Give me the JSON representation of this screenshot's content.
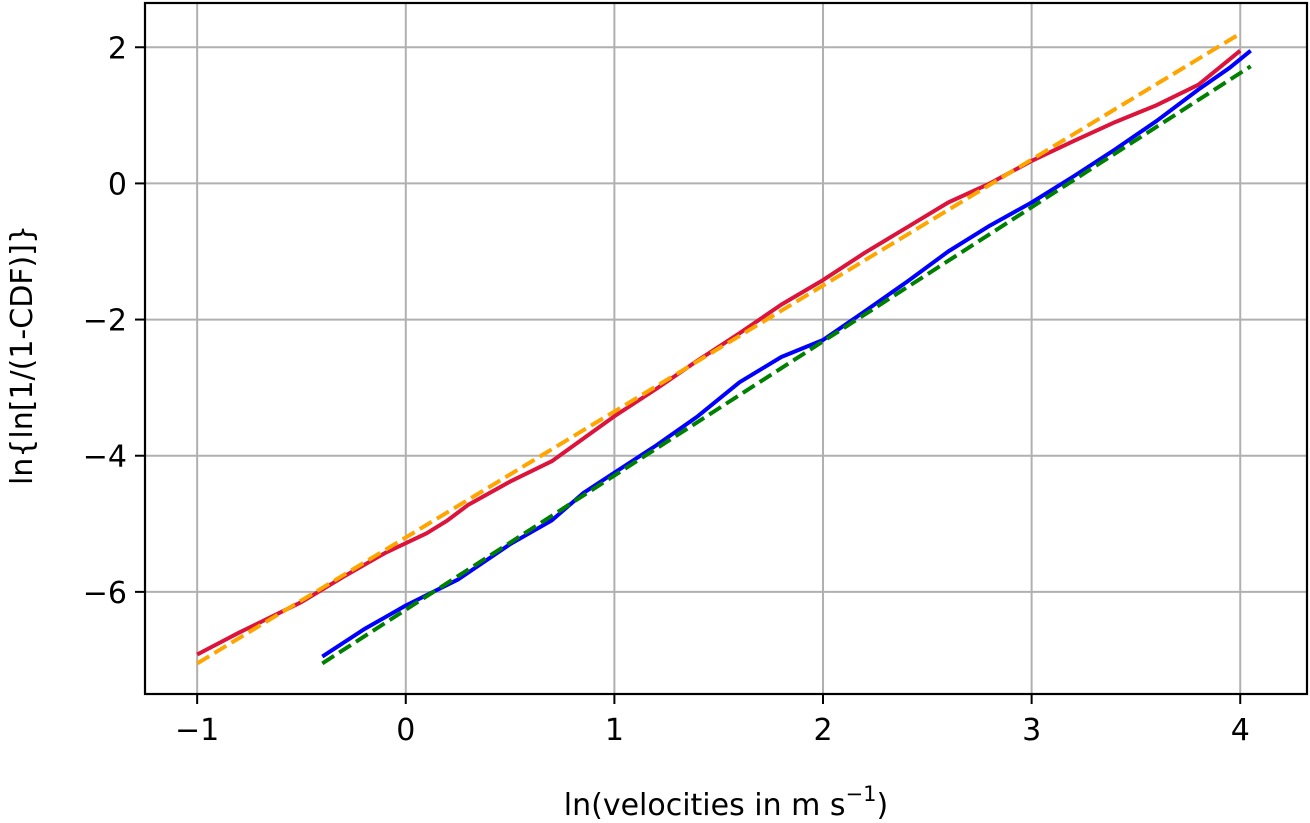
{
  "chart_data": {
    "type": "line",
    "title": "",
    "xlabel": "ln(velocities in m s",
    "xlabel_sup": "−1",
    "xlabel_close": ")",
    "ylabel": "ln{ln[1/(1-CDF)]}",
    "xlim": [
      -1.25,
      4.32
    ],
    "ylim": [
      -7.5,
      2.65
    ],
    "grid": true,
    "xticks": [
      -1,
      0,
      1,
      2,
      3,
      4
    ],
    "xtick_labels": [
      "−1",
      "0",
      "1",
      "2",
      "3",
      "4"
    ],
    "yticks": [
      2,
      0,
      -2,
      -4,
      -6
    ],
    "ytick_labels": [
      "2",
      "0",
      "−2",
      "−4",
      "−6"
    ],
    "series": [
      {
        "color": "#dc143c",
        "dash": "solid",
        "x": [
          -1.0,
          -0.8,
          -0.5,
          -0.3,
          -0.1,
          0.1,
          0.2,
          0.3,
          0.5,
          0.7,
          0.85,
          1.0,
          1.2,
          1.4,
          1.6,
          1.8,
          2.0,
          2.2,
          2.4,
          2.6,
          2.8,
          3.0,
          3.2,
          3.4,
          3.6,
          3.8,
          4.0
        ],
        "y": [
          -6.92,
          -6.6,
          -6.15,
          -5.78,
          -5.43,
          -5.14,
          -4.95,
          -4.72,
          -4.38,
          -4.08,
          -3.75,
          -3.42,
          -3.02,
          -2.6,
          -2.2,
          -1.78,
          -1.42,
          -1.02,
          -0.65,
          -0.28,
          0.0,
          0.33,
          0.62,
          0.9,
          1.15,
          1.45,
          1.95
        ]
      },
      {
        "color": "#ffa500",
        "dash": "dashed",
        "x": [
          -1.0,
          4.0
        ],
        "y": [
          -7.05,
          2.2
        ]
      },
      {
        "color": "#0000ff",
        "dash": "solid",
        "x": [
          -0.4,
          -0.2,
          0.0,
          0.25,
          0.5,
          0.7,
          0.85,
          1.0,
          1.2,
          1.4,
          1.6,
          1.8,
          2.0,
          2.2,
          2.4,
          2.6,
          2.8,
          3.0,
          3.2,
          3.4,
          3.6,
          3.8,
          3.95,
          4.05
        ],
        "y": [
          -6.95,
          -6.55,
          -6.2,
          -5.82,
          -5.3,
          -4.95,
          -4.55,
          -4.25,
          -3.85,
          -3.42,
          -2.92,
          -2.55,
          -2.3,
          -1.88,
          -1.45,
          -1.0,
          -0.62,
          -0.28,
          0.1,
          0.5,
          0.92,
          1.38,
          1.7,
          1.95
        ]
      },
      {
        "color": "#008000",
        "dash": "dashed",
        "x": [
          -0.4,
          4.05
        ],
        "y": [
          -7.05,
          1.72
        ]
      }
    ]
  }
}
